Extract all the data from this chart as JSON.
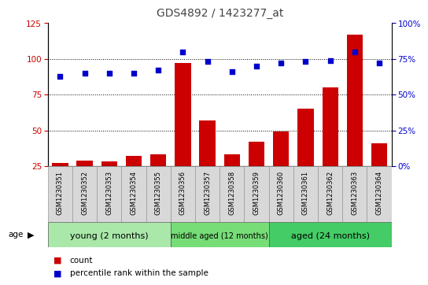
{
  "title": "GDS4892 / 1423277_at",
  "samples": [
    "GSM1230351",
    "GSM1230352",
    "GSM1230353",
    "GSM1230354",
    "GSM1230355",
    "GSM1230356",
    "GSM1230357",
    "GSM1230358",
    "GSM1230359",
    "GSM1230360",
    "GSM1230361",
    "GSM1230362",
    "GSM1230363",
    "GSM1230364"
  ],
  "counts": [
    27,
    29,
    28,
    32,
    33,
    97,
    57,
    33,
    42,
    49,
    65,
    80,
    117,
    41
  ],
  "percentiles": [
    63,
    65,
    65,
    65,
    67,
    80,
    73,
    66,
    70,
    72,
    73,
    74,
    80,
    72
  ],
  "ylim_left": [
    25,
    125
  ],
  "ylim_right": [
    0,
    100
  ],
  "yticks_left": [
    25,
    50,
    75,
    100,
    125
  ],
  "yticks_right": [
    0,
    25,
    50,
    75,
    100
  ],
  "ytick_labels_right": [
    "0%",
    "25%",
    "50%",
    "75%",
    "100%"
  ],
  "bar_color": "#CC0000",
  "scatter_color": "#0000CC",
  "groups": [
    {
      "label": "young (2 months)",
      "start": 0,
      "end": 5
    },
    {
      "label": "middle aged (12 months)",
      "start": 5,
      "end": 9
    },
    {
      "label": "aged (24 months)",
      "start": 9,
      "end": 14
    }
  ],
  "group_colors": [
    "#aae8aa",
    "#77dd77",
    "#44cc66"
  ],
  "age_label": "age",
  "legend_count_label": "count",
  "legend_percentile_label": "percentile rank within the sample",
  "title_fontsize": 10,
  "tick_fontsize": 7.5,
  "sample_box_color": "#d8d8d8",
  "sample_box_edge": "#999999"
}
